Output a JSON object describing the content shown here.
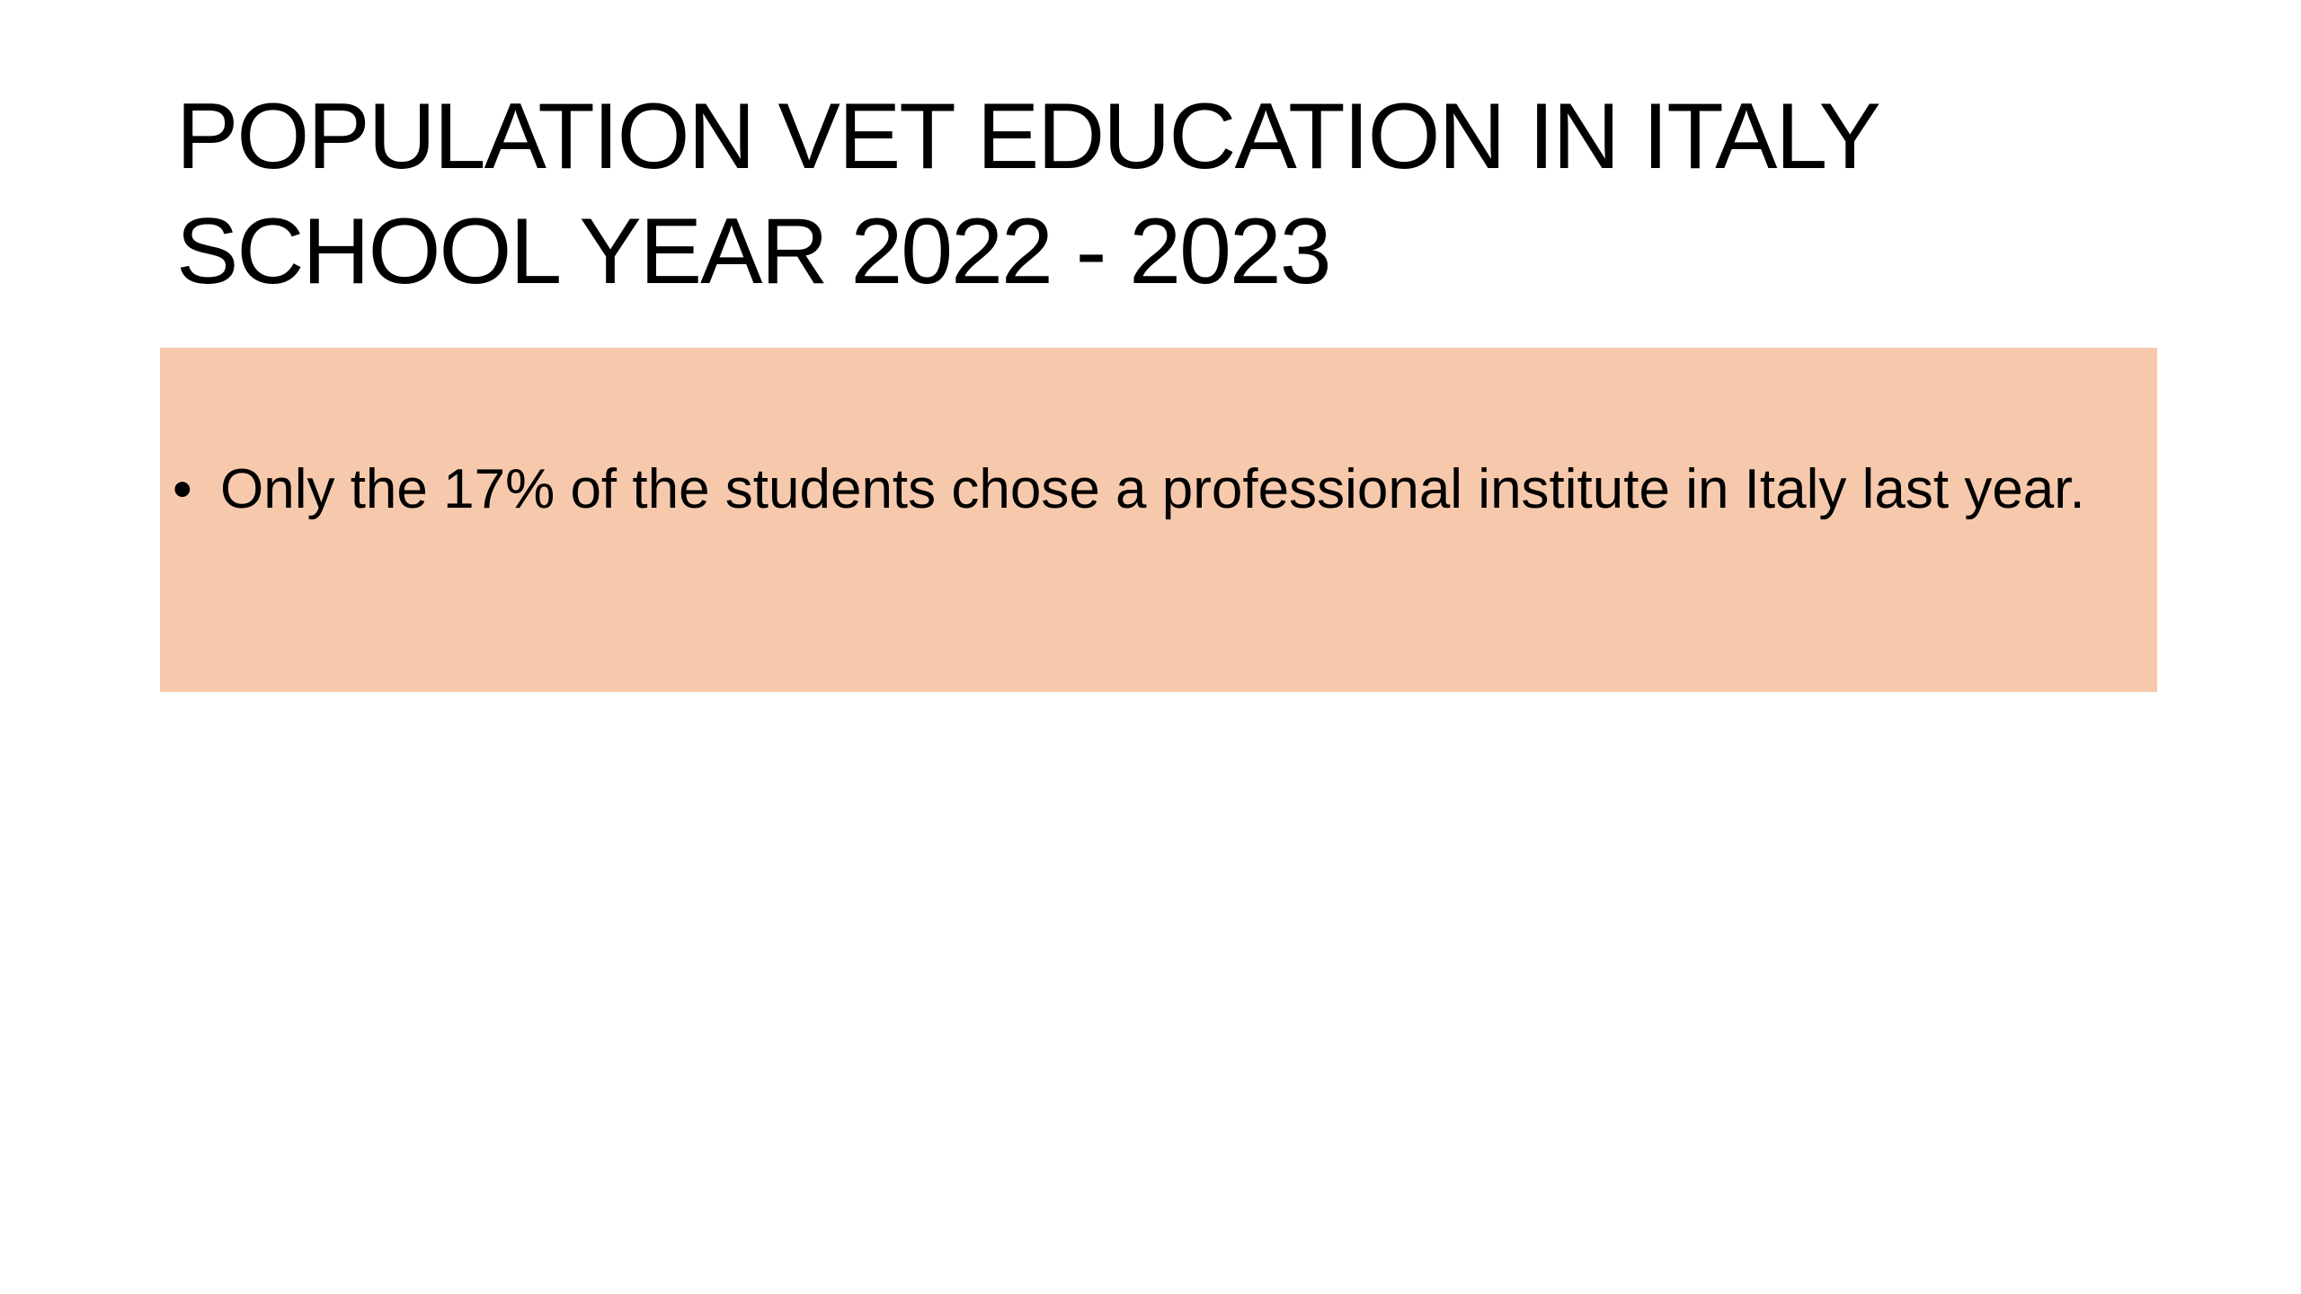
{
  "slide": {
    "title_lines": [
      "POPULATION VET EDUCATION IN ITALY",
      "SCHOOL YEAR 2022 - 2023"
    ],
    "box_color": "#F7C9AC",
    "bullets": [
      {
        "marker": "•",
        "text": "Only the 17% of the students chose a professional institute in Italy last year."
      }
    ]
  }
}
